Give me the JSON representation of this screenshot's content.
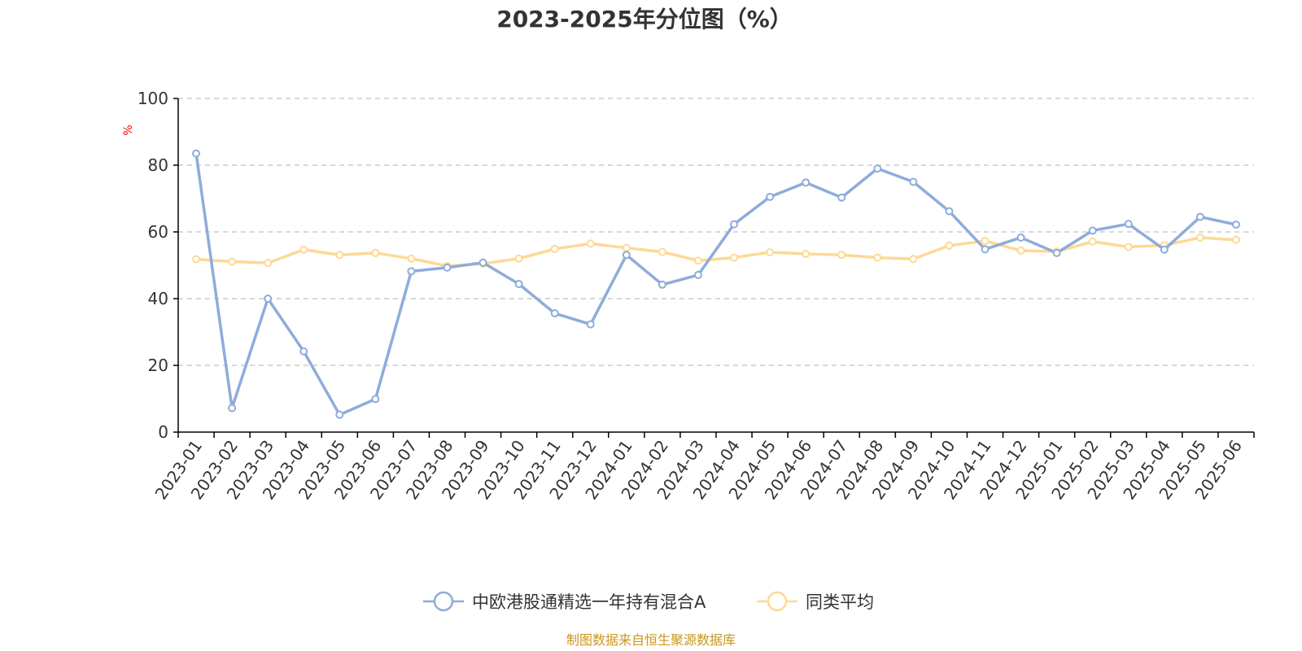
{
  "colors": {
    "series_fund": "#8eacdb",
    "series_avg": "#fdd995",
    "axis": "#000000",
    "grid": "#cccccc",
    "unit": "#ff0000",
    "source": "#c8961e",
    "title": "#333333"
  },
  "chart_data": {
    "type": "line",
    "title": "2023-2025年分位图（%）",
    "ylabel": "%",
    "xlabel": "",
    "ylim": [
      0,
      100
    ],
    "yticks": [
      "0",
      "20",
      "40",
      "60",
      "80",
      "100"
    ],
    "grid": true,
    "legend_position": "bottom-center",
    "categories": [
      "2023-01",
      "2023-02",
      "2023-03",
      "2023-04",
      "2023-05",
      "2023-06",
      "2023-07",
      "2023-08",
      "2023-09",
      "2023-10",
      "2023-11",
      "2023-12",
      "2024-01",
      "2024-02",
      "2024-03",
      "2024-04",
      "2024-05",
      "2024-06",
      "2024-07",
      "2024-08",
      "2024-09",
      "2024-10",
      "2024-11",
      "2024-12",
      "2025-01",
      "2025-02",
      "2025-03",
      "2025-04",
      "2025-05",
      "2025-06"
    ],
    "series": [
      {
        "name": "中欧港股通精选一年持有混合A",
        "color": "#8eacdb",
        "values": [
          83.5,
          7.2,
          40.0,
          24.2,
          5.2,
          9.9,
          48.2,
          49.3,
          50.8,
          44.4,
          35.6,
          32.3,
          53.1,
          44.2,
          47.1,
          62.3,
          70.5,
          74.8,
          70.3,
          79.0,
          75.0,
          66.2,
          54.8,
          58.3,
          53.7,
          60.4,
          62.4,
          54.7,
          64.5,
          62.2
        ]
      },
      {
        "name": "同类平均",
        "color": "#fdd995",
        "values": [
          51.8,
          51.1,
          50.7,
          54.7,
          53.1,
          53.7,
          52.0,
          49.8,
          50.5,
          52.0,
          54.9,
          56.5,
          55.2,
          54.0,
          51.4,
          52.3,
          53.9,
          53.4,
          53.1,
          52.3,
          51.9,
          55.9,
          57.3,
          54.4,
          54.1,
          57.1,
          55.5,
          56.0,
          58.3,
          57.6
        ]
      }
    ]
  },
  "source": "制图数据来自恒生聚源数据库"
}
